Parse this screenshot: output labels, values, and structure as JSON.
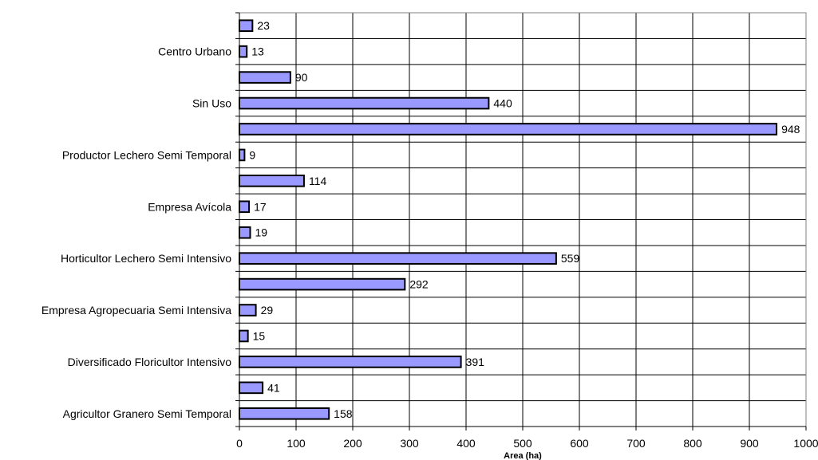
{
  "chart_data": {
    "type": "bar",
    "orientation": "horizontal",
    "categories": [
      "",
      "Centro Urbano",
      "",
      "Sin Uso",
      "",
      "Productor Lechero Semi Temporal",
      "",
      "Empresa Avícola",
      "",
      "Horticultor Lechero Semi Intensivo",
      "",
      "Empresa Agropecuaria Semi Intensiva",
      "",
      "Diversificado Floricultor Intensivo",
      "",
      "Agricultor Granero Semi Temporal"
    ],
    "values": [
      23,
      13,
      90,
      440,
      948,
      9,
      114,
      17,
      19,
      559,
      292,
      29,
      15,
      391,
      41,
      158
    ],
    "data_labels": [
      "23",
      "13",
      "90",
      "440",
      "948",
      "9",
      "114",
      "17",
      "19",
      "559",
      "292",
      "29",
      "15",
      "391",
      "41",
      "158"
    ],
    "xlabel": "Area (ha)",
    "xlim": [
      0,
      1000
    ],
    "xticks": [
      "0",
      "100",
      "200",
      "300",
      "400",
      "500",
      "600",
      "700",
      "800",
      "900",
      "1000"
    ],
    "grid": true,
    "legend": "none",
    "colors": {
      "bar_fill": "#9999ff",
      "bar_stroke": "#000000",
      "grid": "#000000"
    }
  }
}
